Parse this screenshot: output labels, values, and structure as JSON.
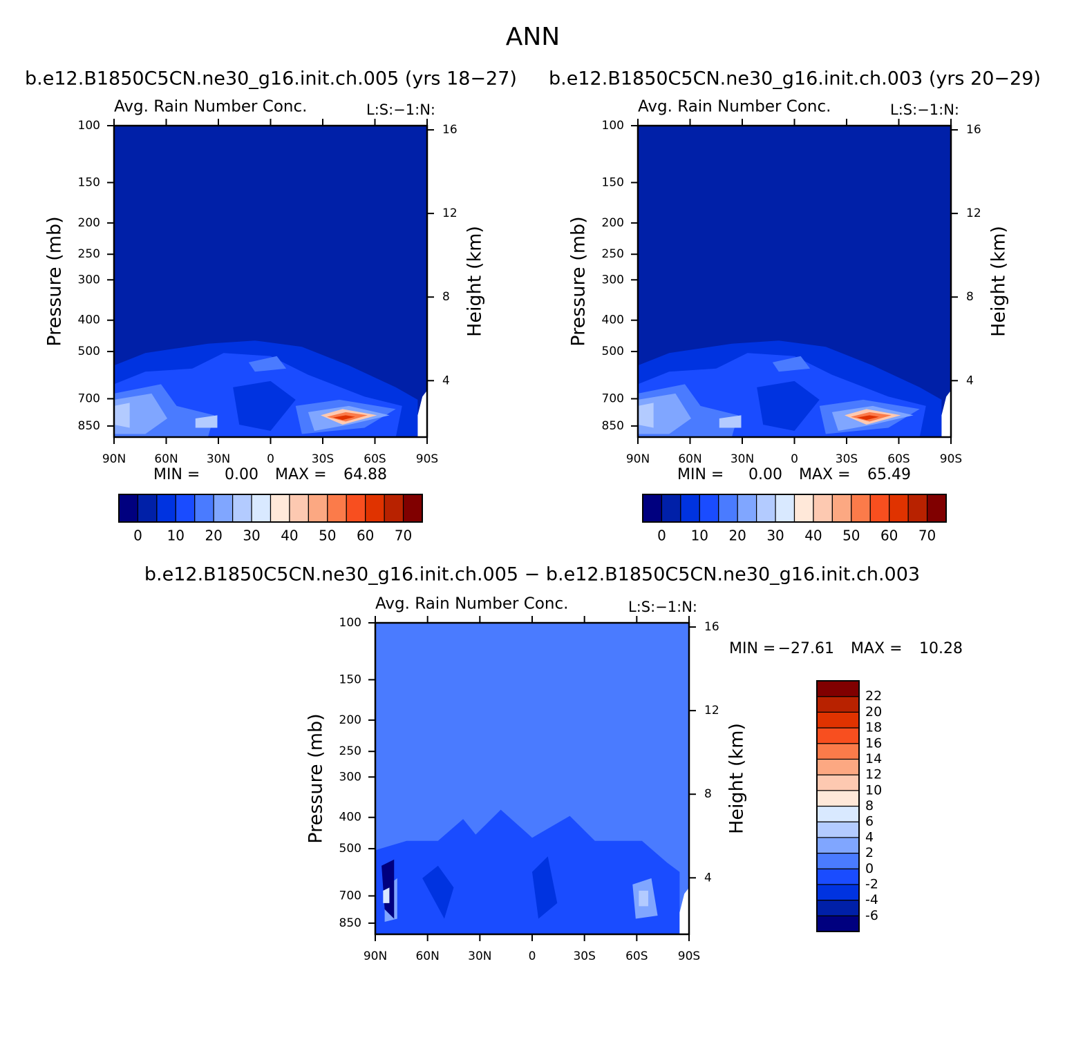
{
  "title": "ANN",
  "chart_data": [
    {
      "type": "contour",
      "subtitle": "b.e12.B1850C5CN.ne30_g16.init.ch.005 (yrs 18−27)",
      "title": "Avg. Rain Number Conc.",
      "units": "L:S:−1:N:",
      "ylabel": "Pressure (mb)",
      "y2label": "Height (km)",
      "xlim": [
        90,
        -90
      ],
      "xticks": [
        {
          "value": 90,
          "label": "90N"
        },
        {
          "value": 60,
          "label": "60N"
        },
        {
          "value": 30,
          "label": "30N"
        },
        0,
        {
          "value": -30,
          "label": "30S"
        },
        {
          "value": -60,
          "label": "60S"
        },
        {
          "value": -90,
          "label": "90S"
        }
      ],
      "ylim": [
        100,
        920
      ],
      "log_y": true,
      "yticks": [
        100,
        150,
        200,
        250,
        300,
        400,
        500,
        700,
        850
      ],
      "y2lim": [
        1.3,
        16.2
      ],
      "y2ticks": [
        4,
        8,
        12,
        16
      ],
      "min_label": "MIN =",
      "min": "0.00",
      "max_label": "MAX =",
      "max": "64.88",
      "colorbar": {
        "orientation": "horizontal",
        "clim": [
          -5,
          75
        ],
        "cticks": [
          0,
          10,
          20,
          30,
          40,
          50,
          60,
          70
        ],
        "colors": [
          "#00007f",
          "#0020a8",
          "#0033e0",
          "#1a4cff",
          "#4a7bff",
          "#80a6ff",
          "#b3cbff",
          "#d9e9ff",
          "#ffe8d9",
          "#fdc9b1",
          "#fca882",
          "#fb7b4a",
          "#f84f1f",
          "#e03300",
          "#b82200",
          "#800000"
        ]
      }
    },
    {
      "type": "contour",
      "subtitle": "b.e12.B1850C5CN.ne30_g16.init.ch.003 (yrs 20−29)",
      "title": "Avg. Rain Number Conc.",
      "units": "L:S:−1:N:",
      "ylabel": "Pressure (mb)",
      "y2label": "Height (km)",
      "xlim": [
        90,
        -90
      ],
      "xticks": [
        {
          "value": 90,
          "label": "90N"
        },
        {
          "value": 60,
          "label": "60N"
        },
        {
          "value": 30,
          "label": "30N"
        },
        0,
        {
          "value": -30,
          "label": "30S"
        },
        {
          "value": -60,
          "label": "60S"
        },
        {
          "value": -90,
          "label": "90S"
        }
      ],
      "ylim": [
        100,
        920
      ],
      "log_y": true,
      "yticks": [
        100,
        150,
        200,
        250,
        300,
        400,
        500,
        700,
        850
      ],
      "y2lim": [
        1.3,
        16.2
      ],
      "y2ticks": [
        4,
        8,
        12,
        16
      ],
      "min_label": "MIN =",
      "min": "0.00",
      "max_label": "MAX =",
      "max": "65.49",
      "colorbar": {
        "orientation": "horizontal",
        "clim": [
          -5,
          75
        ],
        "cticks": [
          0,
          10,
          20,
          30,
          40,
          50,
          60,
          70
        ],
        "colors": [
          "#00007f",
          "#0020a8",
          "#0033e0",
          "#1a4cff",
          "#4a7bff",
          "#80a6ff",
          "#b3cbff",
          "#d9e9ff",
          "#ffe8d9",
          "#fdc9b1",
          "#fca882",
          "#fb7b4a",
          "#f84f1f",
          "#e03300",
          "#b82200",
          "#800000"
        ]
      }
    },
    {
      "type": "contour-diff",
      "subtitle": "b.e12.B1850C5CN.ne30_g16.init.ch.005 − b.e12.B1850C5CN.ne30_g16.init.ch.003",
      "title": "Avg. Rain Number Conc.",
      "units": "L:S:−1:N:",
      "ylabel": "Pressure (mb)",
      "y2label": "Height (km)",
      "xlim": [
        90,
        -90
      ],
      "xticks": [
        {
          "value": 90,
          "label": "90N"
        },
        {
          "value": 60,
          "label": "60N"
        },
        {
          "value": 30,
          "label": "30N"
        },
        0,
        {
          "value": -30,
          "label": "30S"
        },
        {
          "value": -60,
          "label": "60S"
        },
        {
          "value": -90,
          "label": "90S"
        }
      ],
      "ylim": [
        100,
        920
      ],
      "log_y": true,
      "yticks": [
        100,
        150,
        200,
        250,
        300,
        400,
        500,
        700,
        850
      ],
      "y2lim": [
        1.3,
        16.2
      ],
      "y2ticks": [
        4,
        8,
        12,
        16
      ],
      "min_label": "MIN =",
      "min": "−27.61",
      "max_label": "MAX =",
      "max": "10.28",
      "colorbar": {
        "orientation": "vertical",
        "clim": [
          -8,
          24
        ],
        "cticks": [
          -6,
          -4,
          -2,
          0,
          2,
          4,
          6,
          8,
          10,
          12,
          14,
          16,
          18,
          20,
          22
        ],
        "colors": [
          "#00007f",
          "#0020a8",
          "#0033e0",
          "#1a4cff",
          "#4a7bff",
          "#80a6ff",
          "#b3cbff",
          "#d9e9ff",
          "#ffe8d9",
          "#fdc9b1",
          "#fca882",
          "#fb7b4a",
          "#f84f1f",
          "#e03300",
          "#b82200",
          "#800000"
        ]
      }
    }
  ]
}
